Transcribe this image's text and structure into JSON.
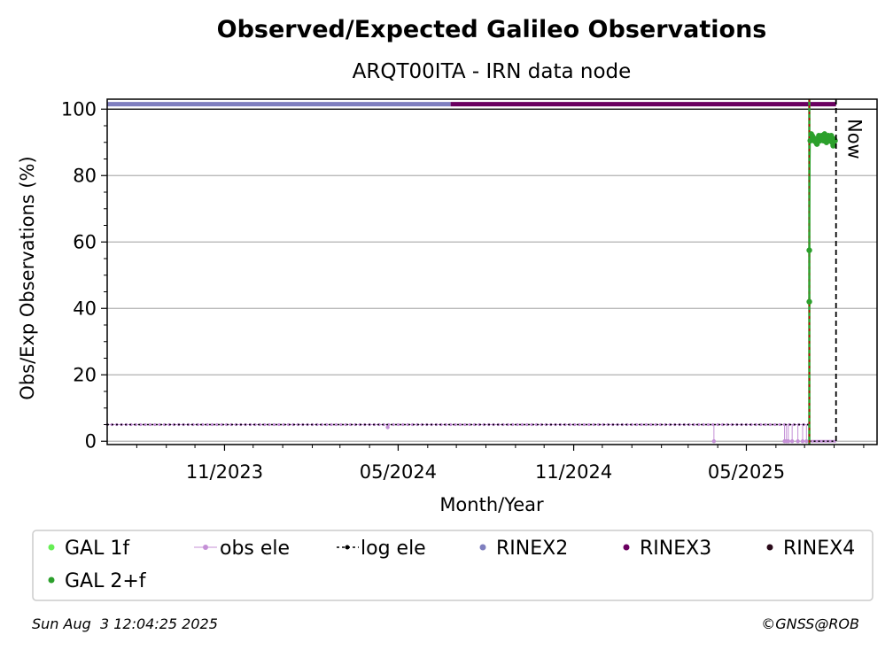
{
  "chart_data": {
    "type": "scatter",
    "title": "Observed/Expected Galileo Observations",
    "subtitle": "ARQT00ITA - IRN data node",
    "xlabel": "Month/Year",
    "ylabel": "Obs/Exp Observations (%)",
    "xlim": [
      "2023-07-01",
      "2025-09-15"
    ],
    "ylim": [
      -1,
      103
    ],
    "x_ticks": [
      {
        "date": "2023-11-01",
        "label": "11/2023"
      },
      {
        "date": "2024-05-01",
        "label": "05/2024"
      },
      {
        "date": "2024-11-01",
        "label": "11/2024"
      },
      {
        "date": "2025-05-01",
        "label": "05/2025"
      }
    ],
    "y_ticks": [
      0,
      20,
      40,
      60,
      80,
      100
    ],
    "grid": "horizontal",
    "now_marker": {
      "date": "2025-08-03",
      "label": "Now"
    },
    "data_start_marker": {
      "date": "2025-07-06"
    },
    "series": [
      {
        "name": "GAL 1f",
        "color": "#66ee55",
        "points": []
      },
      {
        "name": "GAL 2+f",
        "color": "#2ca02c",
        "points": [
          [
            "2025-07-06",
            42
          ],
          [
            "2025-07-06",
            57.5
          ],
          [
            "2025-07-07",
            90.5
          ],
          [
            "2025-07-08",
            92.5
          ],
          [
            "2025-07-09",
            92
          ],
          [
            "2025-07-10",
            91.5
          ],
          [
            "2025-07-11",
            90.5
          ],
          [
            "2025-07-12",
            91
          ],
          [
            "2025-07-13",
            90
          ],
          [
            "2025-07-14",
            89.5
          ],
          [
            "2025-07-15",
            91
          ],
          [
            "2025-07-16",
            92
          ],
          [
            "2025-07-17",
            90.5
          ],
          [
            "2025-07-18",
            91.5
          ],
          [
            "2025-07-19",
            92
          ],
          [
            "2025-07-20",
            91
          ],
          [
            "2025-07-21",
            90.5
          ],
          [
            "2025-07-22",
            92.5
          ],
          [
            "2025-07-23",
            91
          ],
          [
            "2025-07-24",
            90
          ],
          [
            "2025-07-25",
            91.5
          ],
          [
            "2025-07-26",
            92
          ],
          [
            "2025-07-27",
            90.5
          ],
          [
            "2025-07-28",
            91.5
          ],
          [
            "2025-07-29",
            92
          ],
          [
            "2025-07-30",
            90
          ],
          [
            "2025-07-31",
            89
          ],
          [
            "2025-08-01",
            91
          ],
          [
            "2025-08-02",
            90.5
          ]
        ]
      },
      {
        "name": "obs ele",
        "color": "#c48fd6",
        "baseline": 5,
        "range": [
          "2023-07-01",
          "2025-07-06"
        ],
        "dips": [
          [
            "2024-04-20",
            4.2
          ],
          [
            "2025-03-28",
            0
          ],
          [
            "2025-06-10",
            0
          ],
          [
            "2025-06-12",
            0
          ],
          [
            "2025-06-14",
            0
          ],
          [
            "2025-06-18",
            0
          ],
          [
            "2025-06-24",
            0
          ],
          [
            "2025-06-29",
            0
          ],
          [
            "2025-07-03",
            0
          ]
        ],
        "tail": {
          "range": [
            "2025-07-06",
            "2025-08-03"
          ],
          "value": 0
        }
      },
      {
        "name": "log ele",
        "color": "#000000",
        "value": 5,
        "range": [
          "2023-07-01",
          "2025-07-06"
        ],
        "tail": {
          "range": [
            "2025-07-06",
            "2025-08-03"
          ],
          "value": 0
        }
      },
      {
        "name": "RINEX2",
        "color": "#7f7fbf",
        "value": 101.5,
        "range": [
          "2023-07-01",
          "2024-06-25"
        ]
      },
      {
        "name": "RINEX3",
        "color": "#6a0060",
        "value": 101.5,
        "range": [
          "2024-06-25",
          "2025-08-03"
        ]
      },
      {
        "name": "RINEX4",
        "color": "#2a0a1a",
        "points": []
      }
    ]
  },
  "footer": {
    "timestamp": "Sun Aug  3 12:04:25 2025",
    "credit": "©GNSS@ROB"
  }
}
